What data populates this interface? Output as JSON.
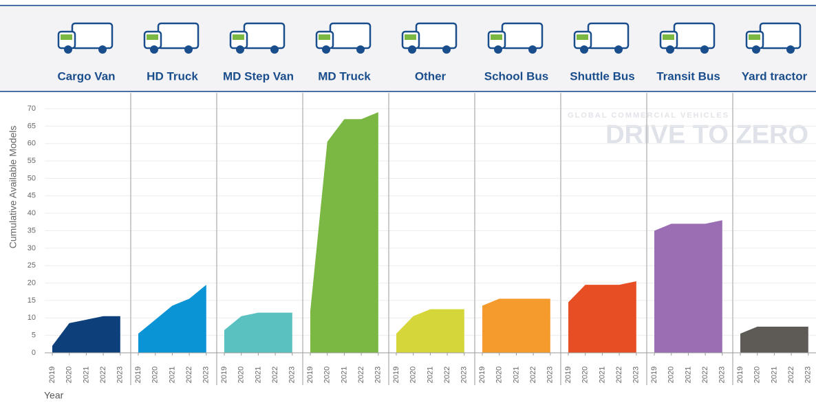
{
  "chart_data": {
    "type": "area",
    "y_label": "Cumulative Available Models",
    "x_label": "Year",
    "watermark": "DRIVE TO ZERO",
    "watermark_sub": "GLOBAL COMMERCIAL VEHICLES",
    "x": [
      2019,
      2020,
      2021,
      2022,
      2023
    ],
    "ylim": [
      0,
      70
    ],
    "yticks": [
      0,
      5,
      10,
      15,
      20,
      25,
      30,
      35,
      40,
      45,
      50,
      55,
      60,
      65,
      70
    ],
    "grid": true,
    "series": [
      {
        "name": "Cargo Van",
        "color": "#0d3f7a",
        "values": [
          2,
          8.5,
          9.5,
          10.5,
          10.5
        ]
      },
      {
        "name": "HD Truck",
        "color": "#0a94d6",
        "values": [
          5.5,
          9.5,
          13.5,
          15.5,
          19.5
        ]
      },
      {
        "name": "MD Step Van",
        "color": "#5bc0c0",
        "values": [
          6.5,
          10.5,
          11.5,
          11.5,
          11.5
        ]
      },
      {
        "name": "MD Truck",
        "color": "#7ab843",
        "values": [
          12,
          60.5,
          67,
          67,
          69
        ]
      },
      {
        "name": "Other",
        "color": "#d4d63a",
        "values": [
          5.5,
          10.5,
          12.5,
          12.5,
          12.5
        ]
      },
      {
        "name": "School Bus",
        "color": "#f59a2c",
        "values": [
          13.5,
          15.5,
          15.5,
          15.5,
          15.5
        ]
      },
      {
        "name": "Shuttle Bus",
        "color": "#e84e24",
        "values": [
          14.5,
          19.5,
          19.5,
          19.5,
          20.5
        ]
      },
      {
        "name": "Transit Bus",
        "color": "#9b6db3",
        "values": [
          35,
          37,
          37,
          37,
          38
        ]
      },
      {
        "name": "Yard tractor",
        "color": "#5e5a56",
        "values": [
          5.5,
          7.5,
          7.5,
          7.5,
          7.5
        ]
      }
    ]
  }
}
